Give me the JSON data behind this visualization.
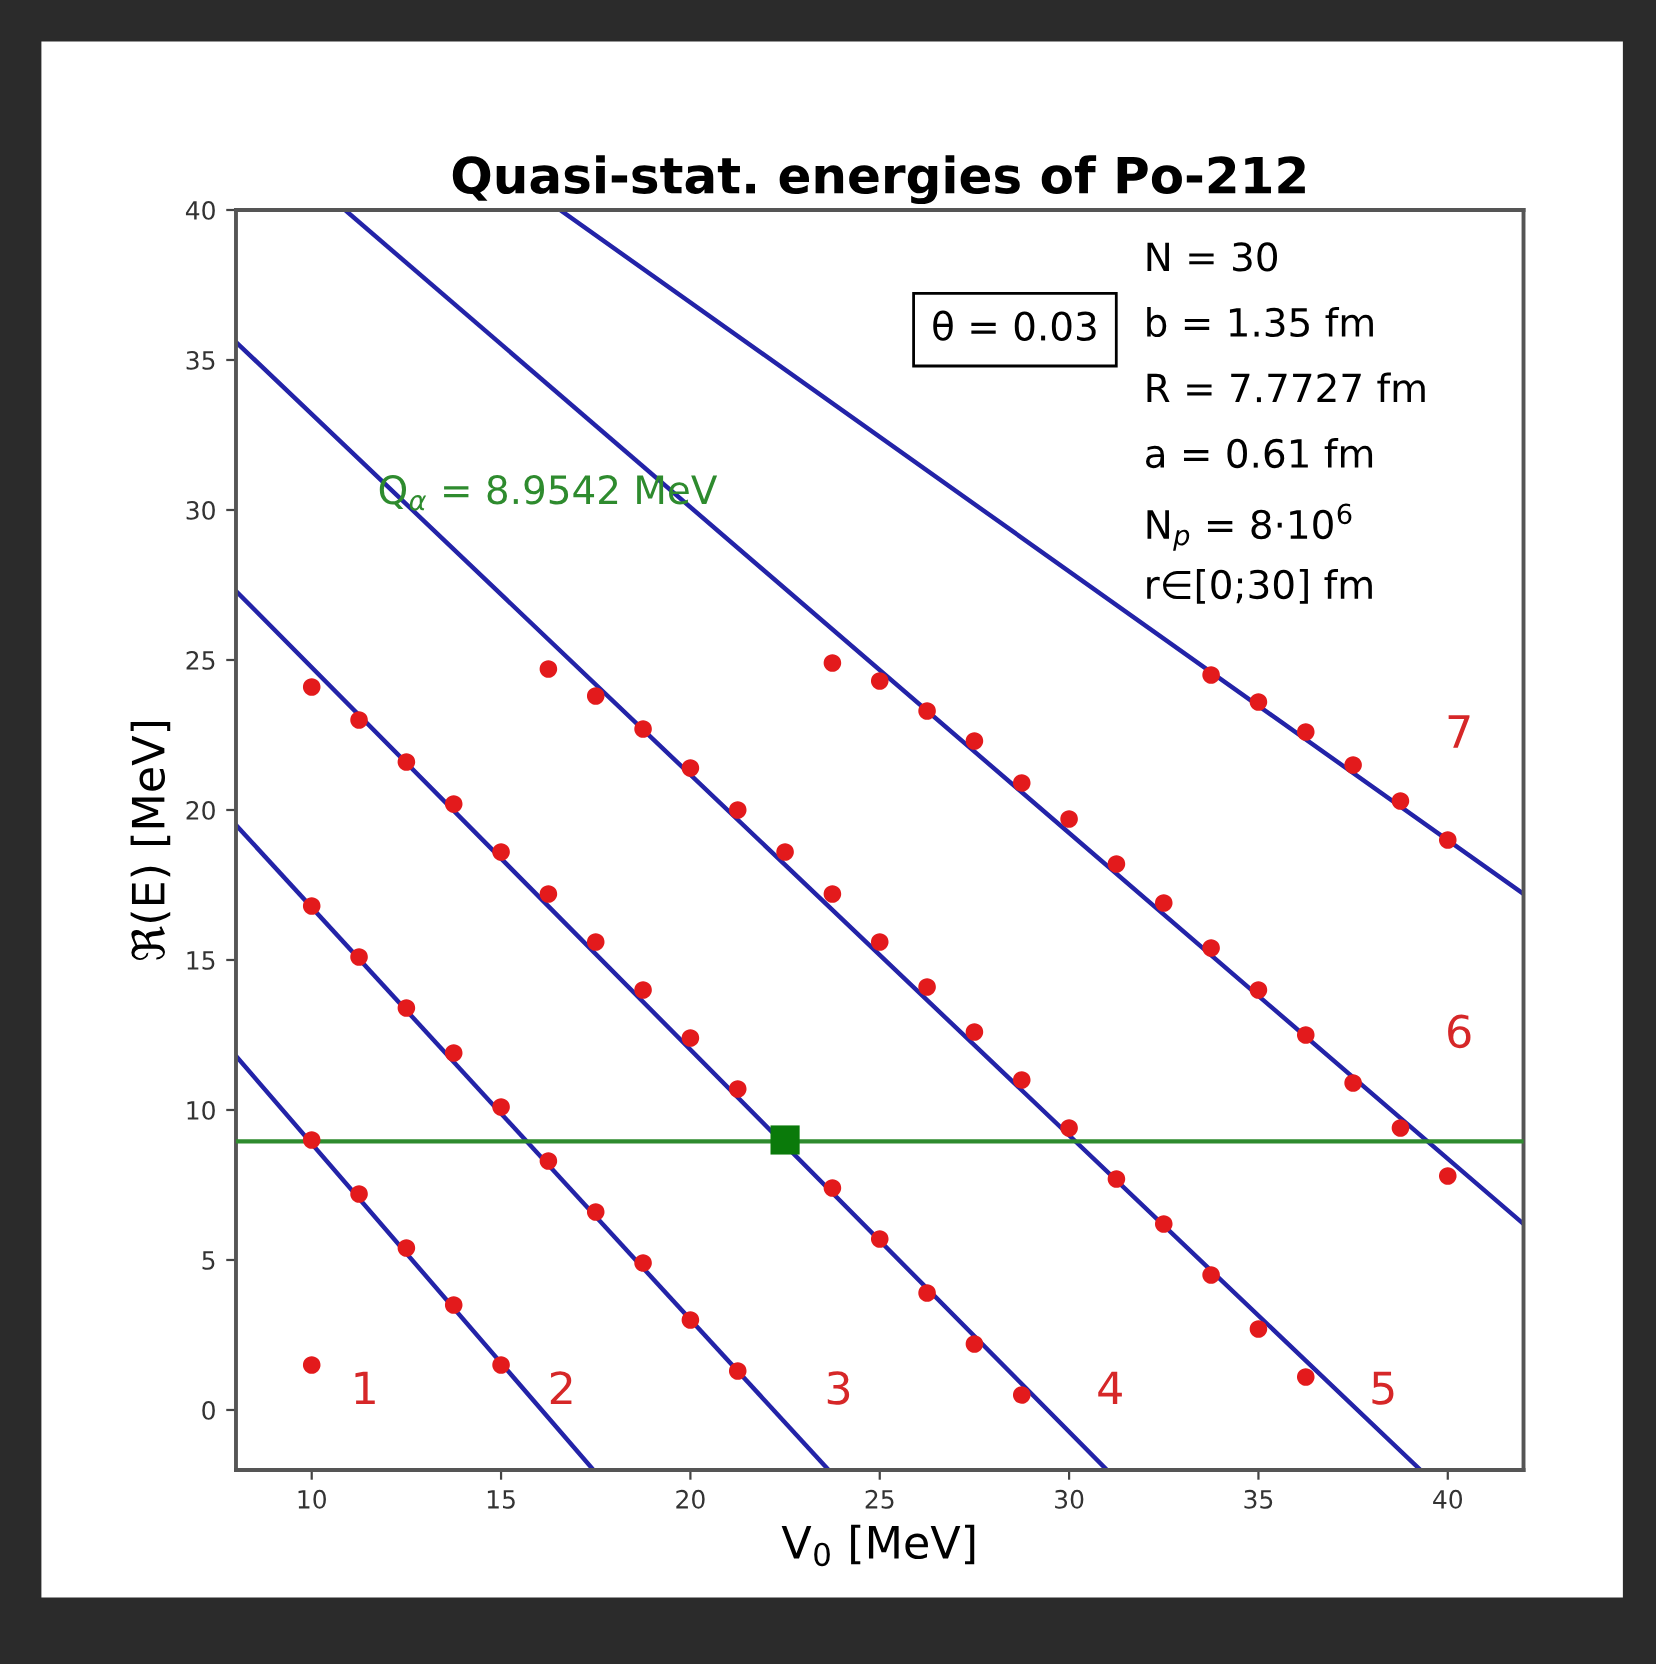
{
  "chart_data": {
    "type": "scatter",
    "title": "Quasi-stat. energies of Po-212",
    "xlabel": "V$_{0}$ [MeV]",
    "ylabel": "ℜ(E) [MeV]",
    "xlim": [
      8,
      42
    ],
    "ylim": [
      -2,
      40
    ],
    "xticks": [
      10,
      15,
      20,
      25,
      30,
      35,
      40
    ],
    "yticks": [
      0,
      5,
      10,
      15,
      20,
      25,
      30,
      35,
      40
    ],
    "grid": false,
    "legend": false,
    "series": [
      {
        "type": "line",
        "color": "#2323a8",
        "x": [
          8,
          17.44
        ],
        "values": [
          11.8,
          -2
        ]
      },
      {
        "type": "line",
        "color": "#2323a8",
        "x": [
          8,
          23.65
        ],
        "values": [
          19.5,
          -2
        ]
      },
      {
        "type": "line",
        "color": "#2323a8",
        "x": [
          8,
          31.0
        ],
        "values": [
          27.3,
          -2
        ]
      },
      {
        "type": "line",
        "color": "#2323a8",
        "x": [
          8,
          39.28
        ],
        "values": [
          35.6,
          -2
        ]
      },
      {
        "type": "line",
        "color": "#2323a8",
        "x": [
          10.88,
          42
        ],
        "values": [
          40,
          6.2
        ]
      },
      {
        "type": "line",
        "color": "#2323a8",
        "x": [
          16.56,
          42
        ],
        "values": [
          40,
          17.2
        ]
      },
      {
        "color": "#e31a1c",
        "marker": "circle",
        "x": [
          10,
          10,
          10,
          10,
          11.25,
          11.25,
          11.25,
          12.5,
          12.5,
          12.5,
          13.75,
          13.75,
          13.75,
          15,
          15,
          15,
          16.25,
          16.25,
          16.25,
          17.5,
          17.5,
          17.5,
          18.75,
          18.75,
          18.75,
          20,
          20,
          20,
          21.25,
          21.25,
          21.25,
          22.5,
          23.75,
          23.75,
          23.75,
          25,
          25,
          25,
          26.25,
          26.25,
          26.25,
          27.5,
          27.5,
          27.5,
          28.75,
          28.75,
          28.75,
          30,
          30,
          31.25,
          31.25,
          32.5,
          32.5,
          33.75,
          33.75,
          33.75,
          35,
          35,
          35,
          36.25,
          36.25,
          36.25,
          37.5,
          37.5,
          38.75,
          38.75,
          40,
          40
        ],
        "values": [
          24.1,
          16.8,
          9.0,
          1.5,
          23.0,
          15.1,
          7.2,
          21.6,
          13.4,
          5.4,
          20.2,
          11.9,
          3.5,
          18.6,
          10.1,
          1.5,
          24.7,
          17.2,
          8.3,
          23.8,
          15.6,
          6.6,
          22.7,
          14.0,
          4.9,
          21.4,
          12.4,
          3.0,
          20.0,
          10.7,
          1.3,
          18.6,
          24.9,
          17.2,
          7.4,
          24.3,
          15.6,
          5.7,
          23.3,
          14.1,
          3.9,
          22.3,
          12.6,
          2.2,
          20.9,
          11.0,
          0.5,
          19.7,
          9.4,
          18.2,
          7.7,
          16.9,
          6.2,
          24.5,
          15.4,
          4.5,
          23.6,
          14.0,
          2.7,
          22.6,
          12.5,
          1.1,
          21.5,
          10.9,
          20.3,
          9.4,
          19.0,
          7.8
        ]
      },
      {
        "color": "#0a7a0a",
        "marker": "square",
        "x": [
          22.5
        ],
        "values": [
          9.0
        ]
      }
    ],
    "ref_lines": [
      {
        "axis": "y",
        "value": 8.9542,
        "label": "Q$_{α}$ = 8.9542 MeV",
        "color": "#2e8b2e"
      }
    ],
    "annotations": [
      "θ = 0.03",
      "N = 30",
      "b = 1.35 fm",
      "R = 7.7727 fm",
      "a = 0.61 fm",
      "N$_{p}$ = 8·10$^{6}$",
      "r∈[0;30] fm",
      "1",
      "2",
      "3",
      "4",
      "5",
      "6",
      "7"
    ]
  }
}
